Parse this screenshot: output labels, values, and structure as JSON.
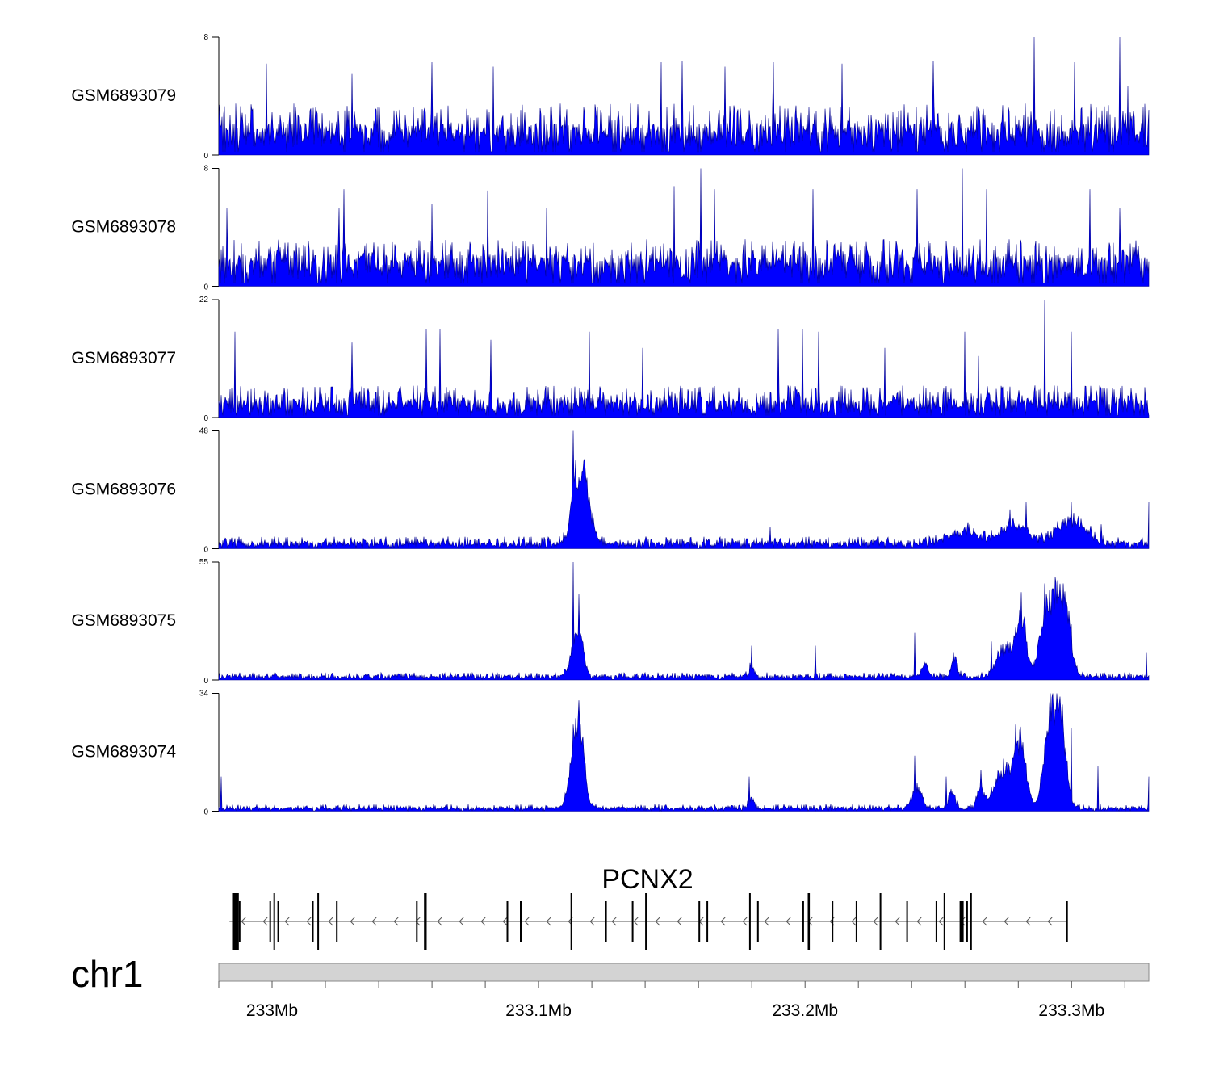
{
  "chart_data": {
    "type": "area",
    "title": "",
    "xlabel": "",
    "ylabel": "",
    "x_unit": "Mb",
    "xlim": [
      232.98,
      233.329
    ],
    "series_color": "#0000ff",
    "tracks": [
      {
        "name": "GSM6893079",
        "ylim": [
          0,
          8
        ],
        "baseline": 1.5,
        "noise_max": 3.5,
        "peaks": [],
        "spikes": [
          [
            232.998,
            6.2
          ],
          [
            233.03,
            5.5
          ],
          [
            233.06,
            6.3
          ],
          [
            233.083,
            6.0
          ],
          [
            233.146,
            6.3
          ],
          [
            233.154,
            6.4
          ],
          [
            233.17,
            6.0
          ],
          [
            233.188,
            6.3
          ],
          [
            233.214,
            6.2
          ],
          [
            233.248,
            6.4
          ],
          [
            233.286,
            8.0
          ],
          [
            233.301,
            6.3
          ],
          [
            233.318,
            8.0
          ],
          [
            233.321,
            4.7
          ]
        ]
      },
      {
        "name": "GSM6893078",
        "ylim": [
          0,
          8
        ],
        "baseline": 1.5,
        "noise_max": 3.2,
        "peaks": [],
        "spikes": [
          [
            232.983,
            5.3
          ],
          [
            233.025,
            5.3
          ],
          [
            233.027,
            6.6
          ],
          [
            233.06,
            5.6
          ],
          [
            233.081,
            6.5
          ],
          [
            233.103,
            5.3
          ],
          [
            233.151,
            6.8
          ],
          [
            233.161,
            8.0
          ],
          [
            233.166,
            6.6
          ],
          [
            233.203,
            6.6
          ],
          [
            233.242,
            6.6
          ],
          [
            233.259,
            8.0
          ],
          [
            233.268,
            6.6
          ],
          [
            233.307,
            6.6
          ],
          [
            233.318,
            5.3
          ]
        ]
      },
      {
        "name": "GSM6893077",
        "ylim": [
          0,
          22
        ],
        "baseline": 2.5,
        "noise_max": 6.0,
        "peaks": [],
        "spikes": [
          [
            232.986,
            16.0
          ],
          [
            233.03,
            14.0
          ],
          [
            233.058,
            16.5
          ],
          [
            233.063,
            16.5
          ],
          [
            233.082,
            14.5
          ],
          [
            233.119,
            16.0
          ],
          [
            233.139,
            13.0
          ],
          [
            233.19,
            16.5
          ],
          [
            233.199,
            16.5
          ],
          [
            233.205,
            16.0
          ],
          [
            233.23,
            13.0
          ],
          [
            233.26,
            16.0
          ],
          [
            233.265,
            11.5
          ],
          [
            233.29,
            22.0
          ],
          [
            233.3,
            16.0
          ]
        ]
      },
      {
        "name": "GSM6893076",
        "ylim": [
          0,
          48
        ],
        "baseline": 2.0,
        "noise_max": 5.0,
        "peaks": [
          [
            233.115,
            18,
            0.0025
          ],
          [
            233.113,
            12,
            0.001
          ],
          [
            233.117,
            14,
            0.0012
          ],
          [
            233.119,
            9,
            0.002
          ],
          [
            233.3,
            10,
            0.005
          ],
          [
            233.279,
            8,
            0.005
          ],
          [
            233.26,
            5,
            0.006
          ]
        ],
        "spikes": [
          [
            233.113,
            48.0
          ],
          [
            233.114,
            36.0
          ],
          [
            233.117,
            27.0
          ],
          [
            233.118,
            22.0
          ],
          [
            233.187,
            9.0
          ],
          [
            233.283,
            19.0
          ],
          [
            233.277,
            16.0
          ],
          [
            233.3,
            19.0
          ],
          [
            233.311,
            10.0
          ],
          [
            233.329,
            19.0
          ]
        ]
      },
      {
        "name": "GSM6893075",
        "ylim": [
          0,
          55
        ],
        "baseline": 1.5,
        "noise_max": 3.5,
        "peaks": [
          [
            233.114,
            16,
            0.002
          ],
          [
            233.116,
            10,
            0.0012
          ],
          [
            233.18,
            5,
            0.001
          ],
          [
            233.245,
            6,
            0.001
          ],
          [
            233.256,
            8,
            0.0012
          ],
          [
            233.275,
            13,
            0.003
          ],
          [
            233.281,
            28,
            0.0018
          ],
          [
            233.29,
            22,
            0.0025
          ],
          [
            233.294,
            30,
            0.0022
          ],
          [
            233.298,
            26,
            0.002
          ]
        ],
        "spikes": [
          [
            233.113,
            55.0
          ],
          [
            233.115,
            40.0
          ],
          [
            233.18,
            16.0
          ],
          [
            233.204,
            16.0
          ],
          [
            233.241,
            22.0
          ],
          [
            233.27,
            18.0
          ],
          [
            233.276,
            18.0
          ],
          [
            233.281,
            41.0
          ],
          [
            233.29,
            45.0
          ],
          [
            233.297,
            45.0
          ],
          [
            233.3,
            26.0
          ],
          [
            233.328,
            13.0
          ]
        ]
      },
      {
        "name": "GSM6893074",
        "ylim": [
          0,
          34
        ],
        "baseline": 0.8,
        "noise_max": 2.0,
        "peaks": [
          [
            233.114,
            18,
            0.0022
          ],
          [
            233.116,
            10,
            0.0015
          ],
          [
            233.18,
            3,
            0.001
          ],
          [
            233.242,
            6,
            0.0018
          ],
          [
            233.255,
            5,
            0.0012
          ],
          [
            233.266,
            5,
            0.0015
          ],
          [
            233.275,
            12,
            0.0035
          ],
          [
            233.281,
            16,
            0.002
          ],
          [
            233.292,
            26,
            0.0022
          ],
          [
            233.296,
            22,
            0.002
          ]
        ],
        "spikes": [
          [
            232.981,
            10.0
          ],
          [
            233.113,
            25.0
          ],
          [
            233.115,
            32.0
          ],
          [
            233.179,
            10.0
          ],
          [
            233.241,
            16.0
          ],
          [
            233.253,
            10.0
          ],
          [
            233.266,
            12.0
          ],
          [
            233.279,
            25.0
          ],
          [
            233.292,
            34.0
          ],
          [
            233.296,
            27.0
          ],
          [
            233.3,
            24.0
          ],
          [
            233.31,
            13.0
          ],
          [
            233.329,
            10.0
          ]
        ]
      }
    ],
    "gene": {
      "name": "PCNX2",
      "strand": "-",
      "start": 232.984,
      "end": 233.298,
      "exons": [
        [
          232.985,
          232.9875
        ],
        [
          232.9875,
          232.988
        ],
        [
          232.999,
          232.9992
        ],
        [
          233.0005,
          233.0008
        ],
        [
          233.002,
          233.0022
        ],
        [
          233.015,
          233.0152
        ],
        [
          233.017,
          233.0172
        ],
        [
          233.024,
          233.0246
        ],
        [
          233.054,
          233.0542
        ],
        [
          233.057,
          233.058
        ],
        [
          233.088,
          233.0882
        ],
        [
          233.093,
          233.0932
        ],
        [
          233.112,
          233.1122
        ],
        [
          233.125,
          233.1253
        ],
        [
          233.135,
          233.1352
        ],
        [
          233.14,
          233.1402
        ],
        [
          233.16,
          233.1602
        ],
        [
          233.163,
          233.1632
        ],
        [
          233.179,
          233.1792
        ],
        [
          233.182,
          233.1822
        ],
        [
          233.199,
          233.1992
        ],
        [
          233.201,
          233.2018
        ],
        [
          233.21,
          233.2102
        ],
        [
          233.219,
          233.2192
        ],
        [
          233.228,
          233.2282
        ],
        [
          233.238,
          233.2382
        ],
        [
          233.249,
          233.2492
        ],
        [
          233.252,
          233.2525
        ],
        [
          233.258,
          233.2595
        ],
        [
          233.2605,
          233.261
        ],
        [
          233.262,
          233.2625
        ],
        [
          233.298,
          233.2982
        ]
      ]
    },
    "chromosome": "chr1",
    "x_ticks": [
      232.98,
      233.0,
      233.02,
      233.04,
      233.06,
      233.08,
      233.1,
      233.12,
      233.14,
      233.16,
      233.18,
      233.2,
      233.22,
      233.24,
      233.26,
      233.28,
      233.3,
      233.32
    ],
    "x_tick_labels": [
      {
        "pos": 233.0,
        "text": "233Mb"
      },
      {
        "pos": 233.1,
        "text": "233.1Mb"
      },
      {
        "pos": 233.2,
        "text": "233.2Mb"
      },
      {
        "pos": 233.3,
        "text": "233.3Mb"
      }
    ]
  }
}
